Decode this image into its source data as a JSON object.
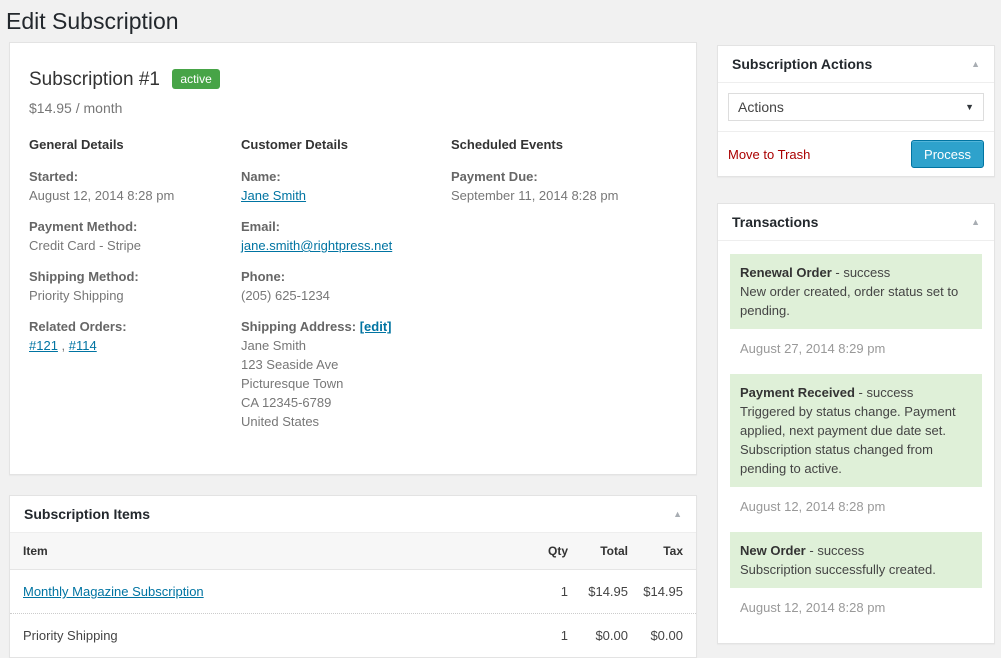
{
  "page": {
    "title": "Edit Subscription"
  },
  "icons": {
    "collapse_arrow": "▲",
    "select_arrow": "▼"
  },
  "colors": {
    "status_green": "#47a447",
    "link_blue": "#0074a2",
    "button_blue": "#2ea2cc",
    "danger_red": "#a00000",
    "transaction_green_bg": "#dff0d8"
  },
  "main": {
    "title": "Subscription #1",
    "status_badge": "active",
    "price": "$14.95 / month",
    "general": {
      "header": "General Details",
      "started_label": "Started:",
      "started_value": "August 12, 2014 8:28 pm",
      "payment_method_label": "Payment Method:",
      "payment_method_value": "Credit Card - Stripe",
      "shipping_method_label": "Shipping Method:",
      "shipping_method_value": "Priority Shipping",
      "related_orders_label": "Related Orders:",
      "related_order_1": "#121",
      "related_separator": " , ",
      "related_order_2": "#114"
    },
    "customer": {
      "header": "Customer Details",
      "name_label": "Name:",
      "name_value": "Jane Smith",
      "email_label": "Email:",
      "email_value": "jane.smith@rightpress.net",
      "phone_label": "Phone:",
      "phone_value": "(205) 625-1234",
      "shipping_address_label": "Shipping Address:",
      "edit_link": "[edit]",
      "address_lines": [
        "Jane Smith",
        "123 Seaside Ave",
        "Picturesque Town",
        "CA 12345-6789",
        "United States"
      ]
    },
    "scheduled": {
      "header": "Scheduled Events",
      "payment_due_label": "Payment Due:",
      "payment_due_value": "September 11, 2014 8:28 pm"
    }
  },
  "items_panel": {
    "title": "Subscription Items",
    "columns": [
      "Item",
      "Qty",
      "Total",
      "Tax"
    ],
    "rows": [
      {
        "item": "Monthly Magazine Subscription",
        "qty": "1",
        "total": "$14.95",
        "tax": "$14.95"
      },
      {
        "item": "Priority Shipping",
        "qty": "1",
        "total": "$0.00",
        "tax": "$0.00"
      }
    ]
  },
  "actions_panel": {
    "title": "Subscription Actions",
    "select_value": "Actions",
    "trash_label": "Move to Trash",
    "process_label": "Process"
  },
  "transactions_panel": {
    "title": "Transactions",
    "entries": [
      {
        "title": "Renewal Order",
        "status": "- success",
        "message": "New order created, order status set to pending.",
        "date": "August 27, 2014 8:29 pm"
      },
      {
        "title": "Payment Received",
        "status": "- success",
        "message": "Triggered by status change. Payment applied, next payment due date set. Subscription status changed from pending to active.",
        "date": "August 12, 2014 8:28 pm"
      },
      {
        "title": "New Order",
        "status": "- success",
        "message": "Subscription successfully created.",
        "date": "August 12, 2014 8:28 pm"
      }
    ]
  }
}
